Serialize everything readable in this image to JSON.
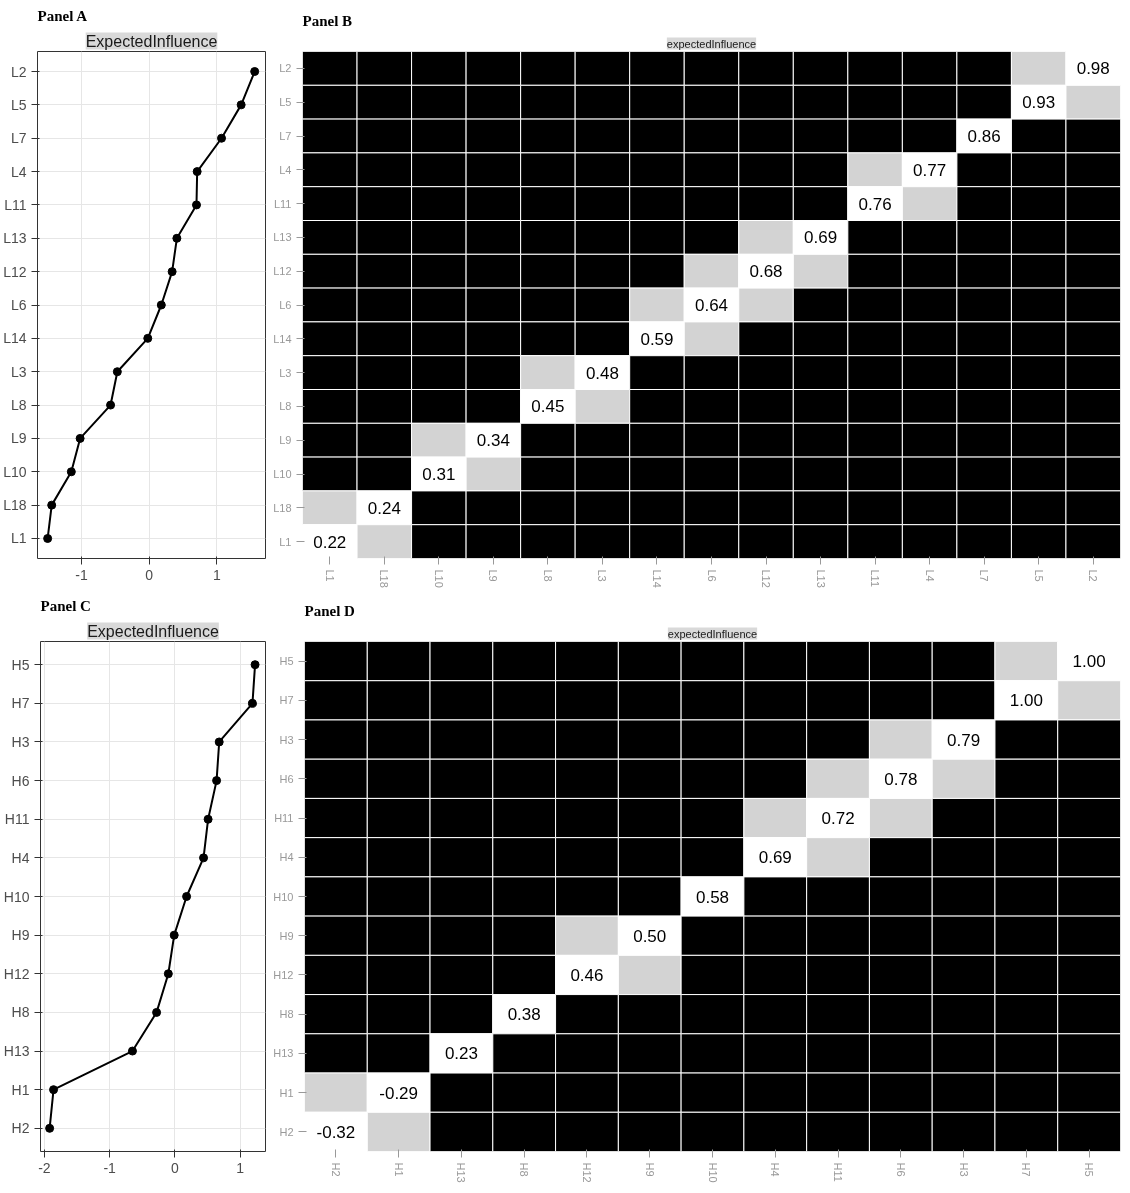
{
  "chart_data": [
    {
      "type": "line",
      "title": "Panel A",
      "subtitle": "ExpectedInfluence",
      "orientation": "horizontal",
      "categories": [
        "L2",
        "L5",
        "L7",
        "L4",
        "L11",
        "L13",
        "L12",
        "L6",
        "L14",
        "L3",
        "L8",
        "L9",
        "L10",
        "L18",
        "L1"
      ],
      "series": [
        {
          "color": "#000000",
          "values": [
            1.56,
            1.36,
            1.07,
            0.71,
            0.7,
            0.41,
            0.34,
            0.18,
            -0.02,
            -0.47,
            -0.57,
            -1.02,
            -1.15,
            -1.44,
            -1.5
          ]
        }
      ],
      "xlim": [
        -1.65,
        1.72
      ],
      "xticks": [
        -1,
        0,
        1
      ],
      "grid": true,
      "marker": "circle",
      "line_style": "solid"
    },
    {
      "type": "heatmap",
      "title": "Panel B",
      "subtitle": "expectedInfluence",
      "data_labels": true,
      "categories": [
        "L1",
        "L18",
        "L10",
        "L9",
        "L8",
        "L3",
        "L14",
        "L6",
        "L12",
        "L13",
        "L11",
        "L4",
        "L7",
        "L5",
        "L2"
      ],
      "y_categories": [
        "L2",
        "L5",
        "L7",
        "L4",
        "L11",
        "L13",
        "L12",
        "L6",
        "L14",
        "L3",
        "L8",
        "L9",
        "L10",
        "L18",
        "L1"
      ],
      "cells": [
        [
          null,
          null,
          null,
          null,
          null,
          null,
          null,
          null,
          null,
          null,
          null,
          null,
          null,
          null,
          0.98
        ],
        [
          null,
          null,
          null,
          null,
          null,
          null,
          null,
          null,
          null,
          null,
          null,
          null,
          null,
          0.93,
          null
        ],
        [
          null,
          null,
          null,
          null,
          null,
          null,
          null,
          null,
          null,
          null,
          null,
          null,
          0.86,
          null,
          null
        ],
        [
          null,
          null,
          null,
          null,
          null,
          null,
          null,
          null,
          null,
          null,
          null,
          0.77,
          null,
          null,
          null
        ],
        [
          null,
          null,
          null,
          null,
          null,
          null,
          null,
          null,
          null,
          null,
          0.76,
          null,
          null,
          null,
          null
        ],
        [
          null,
          null,
          null,
          null,
          null,
          null,
          null,
          null,
          null,
          0.69,
          null,
          null,
          null,
          null,
          null
        ],
        [
          null,
          null,
          null,
          null,
          null,
          null,
          null,
          null,
          0.68,
          null,
          null,
          null,
          null,
          null,
          null
        ],
        [
          null,
          null,
          null,
          null,
          null,
          null,
          null,
          0.64,
          null,
          null,
          null,
          null,
          null,
          null,
          null
        ],
        [
          null,
          null,
          null,
          null,
          null,
          null,
          0.59,
          null,
          null,
          null,
          null,
          null,
          null,
          null,
          null
        ],
        [
          null,
          null,
          null,
          null,
          null,
          0.48,
          null,
          null,
          null,
          null,
          null,
          null,
          null,
          null,
          null
        ],
        [
          null,
          null,
          null,
          null,
          0.45,
          null,
          null,
          null,
          null,
          null,
          null,
          null,
          null,
          null,
          null
        ],
        [
          null,
          null,
          null,
          0.34,
          null,
          null,
          null,
          null,
          null,
          null,
          null,
          null,
          null,
          null,
          null
        ],
        [
          null,
          null,
          0.31,
          null,
          null,
          null,
          null,
          null,
          null,
          null,
          null,
          null,
          null,
          null,
          null
        ],
        [
          null,
          0.24,
          null,
          null,
          null,
          null,
          null,
          null,
          null,
          null,
          null,
          null,
          null,
          null,
          null
        ],
        [
          0.22,
          null,
          null,
          null,
          null,
          null,
          null,
          null,
          null,
          null,
          null,
          null,
          null,
          null,
          null
        ]
      ],
      "colors": [
        [
          "#000000",
          "#000000",
          "#000000",
          "#000000",
          "#000000",
          "#000000",
          "#000000",
          "#000000",
          "#000000",
          "#000000",
          "#000000",
          "#000000",
          "#000000",
          "#d3d3d3",
          "#ffffff"
        ],
        [
          "#000000",
          "#000000",
          "#000000",
          "#000000",
          "#000000",
          "#000000",
          "#000000",
          "#000000",
          "#000000",
          "#000000",
          "#000000",
          "#000000",
          "#000000",
          "#ffffff",
          "#d3d3d3"
        ],
        [
          "#000000",
          "#000000",
          "#000000",
          "#000000",
          "#000000",
          "#000000",
          "#000000",
          "#000000",
          "#000000",
          "#000000",
          "#000000",
          "#000000",
          "#ffffff",
          "#000000",
          "#000000"
        ],
        [
          "#000000",
          "#000000",
          "#000000",
          "#000000",
          "#000000",
          "#000000",
          "#000000",
          "#000000",
          "#000000",
          "#000000",
          "#d3d3d3",
          "#ffffff",
          "#000000",
          "#000000",
          "#000000"
        ],
        [
          "#000000",
          "#000000",
          "#000000",
          "#000000",
          "#000000",
          "#000000",
          "#000000",
          "#000000",
          "#000000",
          "#000000",
          "#ffffff",
          "#d3d3d3",
          "#000000",
          "#000000",
          "#000000"
        ],
        [
          "#000000",
          "#000000",
          "#000000",
          "#000000",
          "#000000",
          "#000000",
          "#000000",
          "#000000",
          "#d3d3d3",
          "#ffffff",
          "#000000",
          "#000000",
          "#000000",
          "#000000",
          "#000000"
        ],
        [
          "#000000",
          "#000000",
          "#000000",
          "#000000",
          "#000000",
          "#000000",
          "#000000",
          "#d3d3d3",
          "#ffffff",
          "#d3d3d3",
          "#000000",
          "#000000",
          "#000000",
          "#000000",
          "#000000"
        ],
        [
          "#000000",
          "#000000",
          "#000000",
          "#000000",
          "#000000",
          "#000000",
          "#d3d3d3",
          "#ffffff",
          "#d3d3d3",
          "#000000",
          "#000000",
          "#000000",
          "#000000",
          "#000000",
          "#000000"
        ],
        [
          "#000000",
          "#000000",
          "#000000",
          "#000000",
          "#000000",
          "#000000",
          "#ffffff",
          "#d3d3d3",
          "#000000",
          "#000000",
          "#000000",
          "#000000",
          "#000000",
          "#000000",
          "#000000"
        ],
        [
          "#000000",
          "#000000",
          "#000000",
          "#000000",
          "#d3d3d3",
          "#ffffff",
          "#000000",
          "#000000",
          "#000000",
          "#000000",
          "#000000",
          "#000000",
          "#000000",
          "#000000",
          "#000000"
        ],
        [
          "#000000",
          "#000000",
          "#000000",
          "#000000",
          "#ffffff",
          "#d3d3d3",
          "#000000",
          "#000000",
          "#000000",
          "#000000",
          "#000000",
          "#000000",
          "#000000",
          "#000000",
          "#000000"
        ],
        [
          "#000000",
          "#000000",
          "#d3d3d3",
          "#ffffff",
          "#000000",
          "#000000",
          "#000000",
          "#000000",
          "#000000",
          "#000000",
          "#000000",
          "#000000",
          "#000000",
          "#000000",
          "#000000"
        ],
        [
          "#000000",
          "#000000",
          "#ffffff",
          "#d3d3d3",
          "#000000",
          "#000000",
          "#000000",
          "#000000",
          "#000000",
          "#000000",
          "#000000",
          "#000000",
          "#000000",
          "#000000",
          "#000000"
        ],
        [
          "#d3d3d3",
          "#ffffff",
          "#000000",
          "#000000",
          "#000000",
          "#000000",
          "#000000",
          "#000000",
          "#000000",
          "#000000",
          "#000000",
          "#000000",
          "#000000",
          "#000000",
          "#000000"
        ],
        [
          "#ffffff",
          "#d3d3d3",
          "#000000",
          "#000000",
          "#000000",
          "#000000",
          "#000000",
          "#000000",
          "#000000",
          "#000000",
          "#000000",
          "#000000",
          "#000000",
          "#000000",
          "#000000"
        ]
      ]
    },
    {
      "type": "line",
      "title": "Panel C",
      "subtitle": "ExpectedInfluence",
      "orientation": "horizontal",
      "categories": [
        "H5",
        "H7",
        "H3",
        "H6",
        "H11",
        "H4",
        "H10",
        "H9",
        "H12",
        "H8",
        "H13",
        "H1",
        "H2"
      ],
      "series": [
        {
          "color": "#000000",
          "values": [
            1.23,
            1.19,
            0.68,
            0.64,
            0.51,
            0.44,
            0.18,
            -0.01,
            -0.1,
            -0.28,
            -0.65,
            -1.86,
            -1.92
          ]
        }
      ],
      "xlim": [
        -2.06,
        1.39
      ],
      "xticks": [
        -2,
        -1,
        0,
        1
      ],
      "grid": true,
      "marker": "circle",
      "line_style": "solid"
    },
    {
      "type": "heatmap",
      "title": "Panel D",
      "subtitle": "expectedInfluence",
      "data_labels": true,
      "cell_labels": [
        [
          null,
          null,
          null,
          null,
          null,
          null,
          null,
          null,
          null,
          null,
          null,
          null,
          "1.00"
        ],
        [
          null,
          null,
          null,
          null,
          null,
          null,
          null,
          null,
          null,
          null,
          null,
          "1.00",
          null
        ],
        [
          null,
          null,
          null,
          null,
          null,
          null,
          null,
          null,
          null,
          null,
          "0.79",
          null,
          null
        ],
        [
          null,
          null,
          null,
          null,
          null,
          null,
          null,
          null,
          null,
          "0.78",
          null,
          null,
          null
        ],
        [
          null,
          null,
          null,
          null,
          null,
          null,
          null,
          null,
          "0.72",
          null,
          null,
          null,
          null
        ],
        [
          null,
          null,
          null,
          null,
          null,
          null,
          null,
          "0.69",
          null,
          null,
          null,
          null,
          null
        ],
        [
          null,
          null,
          null,
          null,
          null,
          null,
          "0.58",
          null,
          null,
          null,
          null,
          null,
          null
        ],
        [
          null,
          null,
          null,
          null,
          null,
          "0.50",
          null,
          null,
          null,
          null,
          null,
          null,
          null
        ],
        [
          null,
          null,
          null,
          null,
          "0.46",
          null,
          null,
          null,
          null,
          null,
          null,
          null,
          null
        ],
        [
          null,
          null,
          null,
          "0.38",
          null,
          null,
          null,
          null,
          null,
          null,
          null,
          null,
          null
        ],
        [
          null,
          null,
          "0.23",
          null,
          null,
          null,
          null,
          null,
          null,
          null,
          null,
          null,
          null
        ],
        [
          null,
          "-0.29",
          null,
          null,
          null,
          null,
          null,
          null,
          null,
          null,
          null,
          null,
          null
        ],
        [
          "-0.32",
          null,
          null,
          null,
          null,
          null,
          null,
          null,
          null,
          null,
          null,
          null,
          null
        ]
      ],
      "categories": [
        "H2",
        "H1",
        "H13",
        "H8",
        "H12",
        "H9",
        "H10",
        "H4",
        "H11",
        "H6",
        "H3",
        "H7",
        "H5"
      ],
      "y_categories": [
        "H5",
        "H7",
        "H3",
        "H6",
        "H11",
        "H4",
        "H10",
        "H9",
        "H12",
        "H8",
        "H13",
        "H1",
        "H2"
      ],
      "cells": [
        [
          null,
          null,
          null,
          null,
          null,
          null,
          null,
          null,
          null,
          null,
          null,
          null,
          1.0
        ],
        [
          null,
          null,
          null,
          null,
          null,
          null,
          null,
          null,
          null,
          null,
          null,
          1.0,
          null
        ],
        [
          null,
          null,
          null,
          null,
          null,
          null,
          null,
          null,
          null,
          null,
          0.79,
          null,
          null
        ],
        [
          null,
          null,
          null,
          null,
          null,
          null,
          null,
          null,
          null,
          0.78,
          null,
          null,
          null
        ],
        [
          null,
          null,
          null,
          null,
          null,
          null,
          null,
          null,
          0.72,
          null,
          null,
          null,
          null
        ],
        [
          null,
          null,
          null,
          null,
          null,
          null,
          null,
          0.69,
          null,
          null,
          null,
          null,
          null
        ],
        [
          null,
          null,
          null,
          null,
          null,
          null,
          0.58,
          null,
          null,
          null,
          null,
          null,
          null
        ],
        [
          null,
          null,
          null,
          null,
          null,
          0.5,
          null,
          null,
          null,
          null,
          null,
          null,
          null
        ],
        [
          null,
          null,
          null,
          null,
          0.46,
          null,
          null,
          null,
          null,
          null,
          null,
          null,
          null
        ],
        [
          null,
          null,
          null,
          0.38,
          null,
          null,
          null,
          null,
          null,
          null,
          null,
          null,
          null
        ],
        [
          null,
          null,
          0.23,
          null,
          null,
          null,
          null,
          null,
          null,
          null,
          null,
          null,
          null
        ],
        [
          null,
          -0.29,
          null,
          null,
          null,
          null,
          null,
          null,
          null,
          null,
          null,
          null,
          null
        ],
        [
          -0.32,
          null,
          null,
          null,
          null,
          null,
          null,
          null,
          null,
          null,
          null,
          null,
          null
        ]
      ],
      "colors": [
        [
          "#000000",
          "#000000",
          "#000000",
          "#000000",
          "#000000",
          "#000000",
          "#000000",
          "#000000",
          "#000000",
          "#000000",
          "#000000",
          "#d3d3d3",
          "#ffffff"
        ],
        [
          "#000000",
          "#000000",
          "#000000",
          "#000000",
          "#000000",
          "#000000",
          "#000000",
          "#000000",
          "#000000",
          "#000000",
          "#000000",
          "#ffffff",
          "#d3d3d3"
        ],
        [
          "#000000",
          "#000000",
          "#000000",
          "#000000",
          "#000000",
          "#000000",
          "#000000",
          "#000000",
          "#000000",
          "#d3d3d3",
          "#ffffff",
          "#000000",
          "#000000"
        ],
        [
          "#000000",
          "#000000",
          "#000000",
          "#000000",
          "#000000",
          "#000000",
          "#000000",
          "#000000",
          "#d3d3d3",
          "#ffffff",
          "#d3d3d3",
          "#000000",
          "#000000"
        ],
        [
          "#000000",
          "#000000",
          "#000000",
          "#000000",
          "#000000",
          "#000000",
          "#000000",
          "#d3d3d3",
          "#ffffff",
          "#d3d3d3",
          "#000000",
          "#000000",
          "#000000"
        ],
        [
          "#000000",
          "#000000",
          "#000000",
          "#000000",
          "#000000",
          "#000000",
          "#000000",
          "#ffffff",
          "#d3d3d3",
          "#000000",
          "#000000",
          "#000000",
          "#000000"
        ],
        [
          "#000000",
          "#000000",
          "#000000",
          "#000000",
          "#000000",
          "#000000",
          "#ffffff",
          "#000000",
          "#000000",
          "#000000",
          "#000000",
          "#000000",
          "#000000"
        ],
        [
          "#000000",
          "#000000",
          "#000000",
          "#000000",
          "#d3d3d3",
          "#ffffff",
          "#000000",
          "#000000",
          "#000000",
          "#000000",
          "#000000",
          "#000000",
          "#000000"
        ],
        [
          "#000000",
          "#000000",
          "#000000",
          "#000000",
          "#ffffff",
          "#d3d3d3",
          "#000000",
          "#000000",
          "#000000",
          "#000000",
          "#000000",
          "#000000",
          "#000000"
        ],
        [
          "#000000",
          "#000000",
          "#000000",
          "#ffffff",
          "#000000",
          "#000000",
          "#000000",
          "#000000",
          "#000000",
          "#000000",
          "#000000",
          "#000000",
          "#000000"
        ],
        [
          "#000000",
          "#000000",
          "#ffffff",
          "#000000",
          "#000000",
          "#000000",
          "#000000",
          "#000000",
          "#000000",
          "#000000",
          "#000000",
          "#000000",
          "#000000"
        ],
        [
          "#d3d3d3",
          "#ffffff",
          "#000000",
          "#000000",
          "#000000",
          "#000000",
          "#000000",
          "#000000",
          "#000000",
          "#000000",
          "#000000",
          "#000000",
          "#000000"
        ],
        [
          "#ffffff",
          "#d3d3d3",
          "#000000",
          "#000000",
          "#000000",
          "#000000",
          "#000000",
          "#000000",
          "#000000",
          "#000000",
          "#000000",
          "#000000",
          "#000000"
        ]
      ]
    }
  ]
}
